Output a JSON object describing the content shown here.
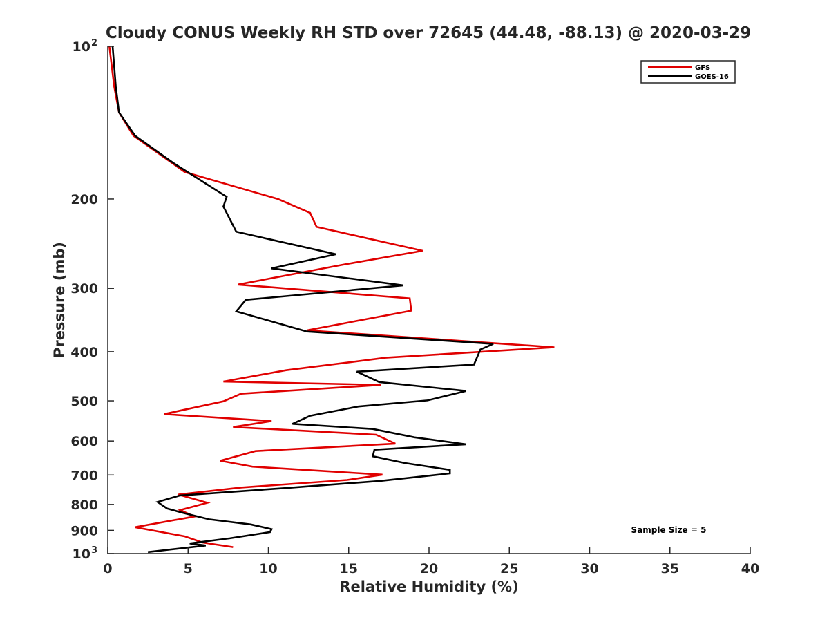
{
  "chart_data": {
    "type": "line",
    "title": "Cloudy CONUS Weekly RH STD over 72645 (44.48, -88.13) @ 2020-03-29",
    "xlabel": "Relative Humidity (%)",
    "ylabel": "Pressure (mb)",
    "xlim": [
      0,
      40
    ],
    "ylim": [
      100,
      1000
    ],
    "y_scale": "log",
    "y_reversed": true,
    "x_ticks": [
      "0",
      "5",
      "10",
      "15",
      "20",
      "25",
      "30",
      "35",
      "40"
    ],
    "y_ticks": [
      {
        "value": 100,
        "label": "10",
        "sup": "2"
      },
      {
        "value": 200,
        "label": "200"
      },
      {
        "value": 300,
        "label": "300"
      },
      {
        "value": 400,
        "label": "400"
      },
      {
        "value": 500,
        "label": "500"
      },
      {
        "value": 600,
        "label": "600"
      },
      {
        "value": 700,
        "label": "700"
      },
      {
        "value": 800,
        "label": "800"
      },
      {
        "value": 900,
        "label": "900"
      },
      {
        "value": 1000,
        "label": "10",
        "sup": "3"
      }
    ],
    "grid": false,
    "legend_position": "top-right",
    "series": [
      {
        "name": "GFS",
        "color": "#e00000",
        "x": [
          0.1,
          0.4,
          0.7,
          1.6,
          4.8,
          10.6,
          12.6,
          13.0,
          19.6,
          14.5,
          8.1,
          18.8,
          18.9,
          12.4,
          27.8,
          17.3,
          11.1,
          7.2,
          17.0,
          8.3,
          7.2,
          3.5,
          10.2,
          7.8,
          16.7,
          17.9,
          9.2,
          7.0,
          9.0,
          17.1,
          14.9,
          8.3,
          4.4,
          6.2,
          4.5,
          5.4,
          1.7,
          4.8,
          5.9,
          7.8
        ],
        "y": [
          100,
          120,
          135,
          150,
          177,
          200,
          213,
          227,
          253,
          270,
          295,
          314,
          332,
          363,
          392,
          411,
          435,
          458,
          465,
          484,
          501,
          531,
          548,
          563,
          583,
          607,
          628,
          656,
          674,
          699,
          716,
          741,
          765,
          794,
          821,
          845,
          887,
          925,
          951,
          971
        ]
      },
      {
        "name": "GOES-16",
        "color": "#000000",
        "x": [
          0.3,
          0.5,
          0.7,
          1.7,
          4.1,
          7.4,
          7.2,
          8.0,
          14.2,
          10.2,
          18.4,
          8.6,
          8.0,
          12.4,
          24.0,
          23.2,
          22.8,
          15.5,
          16.9,
          22.3,
          19.9,
          15.6,
          12.6,
          11.5,
          16.5,
          19.1,
          22.3,
          16.6,
          16.5,
          18.5,
          21.3,
          21.3,
          17.0,
          11.0,
          4.5,
          3.1,
          3.7,
          4.6,
          6.3,
          8.9,
          10.2,
          10.1,
          7.6,
          5.1,
          6.1,
          2.5
        ],
        "y": [
          100,
          120,
          135,
          150,
          170,
          198,
          207,
          232,
          257,
          274,
          296,
          316,
          333,
          365,
          386,
          396,
          424,
          438,
          459,
          478,
          499,
          513,
          535,
          555,
          568,
          590,
          609,
          624,
          643,
          663,
          684,
          695,
          719,
          743,
          768,
          791,
          815,
          830,
          856,
          876,
          895,
          907,
          933,
          955,
          964,
          993
        ]
      }
    ],
    "legend": [
      "GFS",
      "GOES-16"
    ],
    "annotation": "Sample Size = 5"
  }
}
